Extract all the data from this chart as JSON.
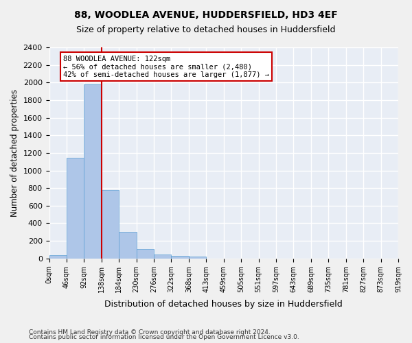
{
  "title_line1": "88, WOODLEA AVENUE, HUDDERSFIELD, HD3 4EF",
  "title_line2": "Size of property relative to detached houses in Huddersfield",
  "xlabel": "Distribution of detached houses by size in Huddersfield",
  "ylabel": "Number of detached properties",
  "bar_color": "#aec6e8",
  "bar_edge_color": "#5a9fd4",
  "background_color": "#e8edf5",
  "grid_color": "#ffffff",
  "annotation_line_color": "#cc0000",
  "annotation_text_line1": "88 WOODLEA AVENUE: 122sqm",
  "annotation_text_line2": "← 56% of detached houses are smaller (2,480)",
  "annotation_text_line3": "42% of semi-detached houses are larger (1,877) →",
  "bin_labels": [
    "0sqm",
    "46sqm",
    "92sqm",
    "138sqm",
    "184sqm",
    "230sqm",
    "276sqm",
    "322sqm",
    "368sqm",
    "413sqm",
    "459sqm",
    "505sqm",
    "551sqm",
    "597sqm",
    "643sqm",
    "689sqm",
    "735sqm",
    "781sqm",
    "827sqm",
    "873sqm",
    "919sqm"
  ],
  "bar_heights": [
    35,
    1145,
    1980,
    780,
    305,
    105,
    45,
    30,
    20,
    0,
    0,
    0,
    0,
    0,
    0,
    0,
    0,
    0,
    0,
    0
  ],
  "ylim": [
    0,
    2400
  ],
  "yticks": [
    0,
    200,
    400,
    600,
    800,
    1000,
    1200,
    1400,
    1600,
    1800,
    2000,
    2200,
    2400
  ],
  "footnote_line1": "Contains HM Land Registry data © Crown copyright and database right 2024.",
  "footnote_line2": "Contains public sector information licensed under the Open Government Licence v3.0."
}
